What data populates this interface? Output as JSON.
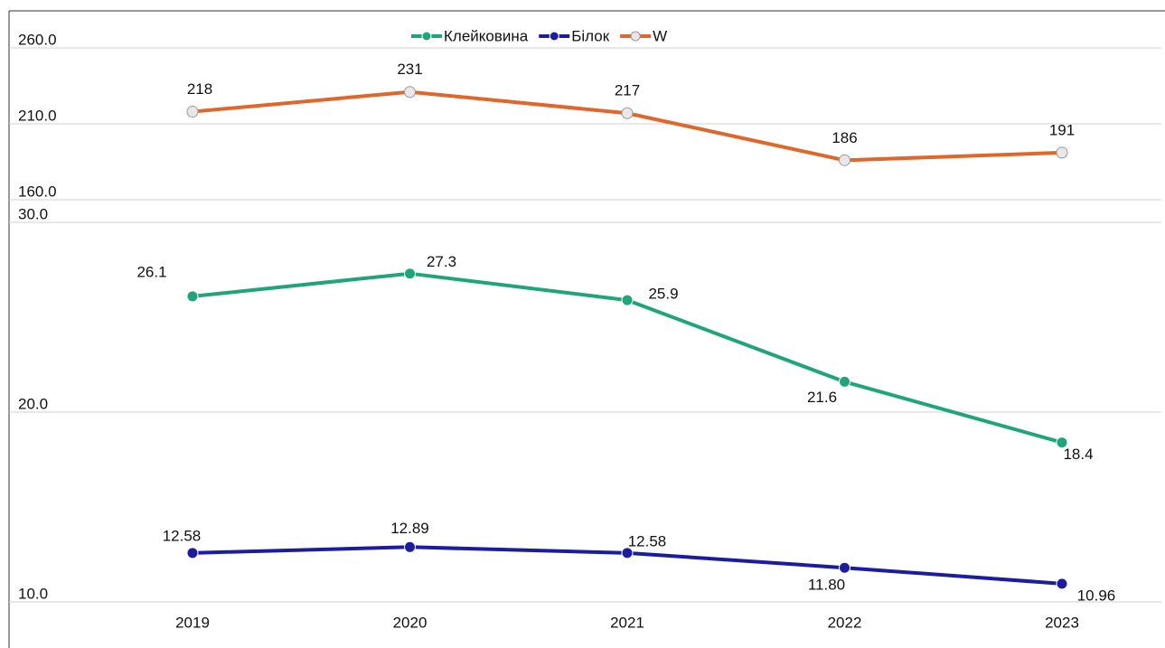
{
  "chart_data": {
    "type": "line",
    "categories": [
      "2019",
      "2020",
      "2021",
      "2022",
      "2023"
    ],
    "series": [
      {
        "name": "Клейковина",
        "color": "#1fa57a",
        "values": [
          26.1,
          27.3,
          25.9,
          21.6,
          18.4
        ]
      },
      {
        "name": "Білок",
        "color": "#1c1ca3",
        "values": [
          12.58,
          12.89,
          12.58,
          11.8,
          10.96
        ],
        "value_labels": [
          "12.58",
          "12.89",
          "12.58",
          "11.80",
          "10.96"
        ]
      },
      {
        "name": "W",
        "color": "#e0662a",
        "axis": "y2",
        "values": [
          218,
          231,
          217,
          186,
          191
        ]
      }
    ],
    "ylim": [
      10,
      30
    ],
    "yticks": [
      {
        "value": 10,
        "label": "10.0"
      },
      {
        "value": 20,
        "label": "20.0"
      },
      {
        "value": 30,
        "label": "30.0"
      }
    ],
    "y2lim": [
      160,
      260
    ],
    "y2ticks": [
      {
        "value": 160,
        "label": "160.0"
      },
      {
        "value": 210,
        "label": "210.0"
      },
      {
        "value": 260,
        "label": "260.0"
      }
    ],
    "grid": true
  }
}
